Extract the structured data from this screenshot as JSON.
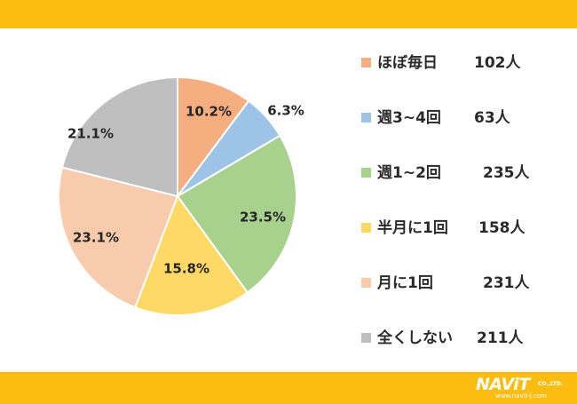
{
  "chart_data": {
    "type": "pie",
    "title": "",
    "slices": [
      {
        "label": "ほぼ毎日",
        "count": "102人",
        "value": 10.2,
        "value_label": "10.2%",
        "color": "#f4ae80"
      },
      {
        "label": "週3~4回",
        "count": "63人",
        "value": 6.3,
        "value_label": "6.3%",
        "color": "#9dc3e6"
      },
      {
        "label": "週1~2回",
        "count": "235人",
        "value": 23.5,
        "value_label": "23.5%",
        "color": "#a9d18e"
      },
      {
        "label": "半月に1回",
        "count": "158人",
        "value": 15.8,
        "value_label": "15.8%",
        "color": "#ffd966"
      },
      {
        "label": "月に1回",
        "count": "231人",
        "value": 23.1,
        "value_label": "23.1%",
        "color": "#f8cbad"
      },
      {
        "label": "全くしない",
        "count": "211人",
        "value": 21.1,
        "value_label": "21.1%",
        "color": "#bfbfbf"
      }
    ],
    "start_angle": "12 o'clock",
    "direction": "clockwise",
    "legend_position": "right"
  },
  "branding": {
    "logo_text": "NAViT",
    "logo_suffix": "CO.,LTD.",
    "logo_url": "www.navit-j.com"
  },
  "theme": {
    "bar_color": "#fdbd10"
  }
}
